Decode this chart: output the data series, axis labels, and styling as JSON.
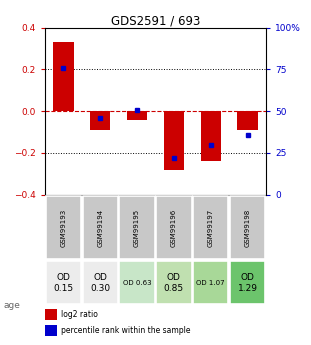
{
  "title": "GDS2591 / 693",
  "samples": [
    "GSM99193",
    "GSM99194",
    "GSM99195",
    "GSM99196",
    "GSM99197",
    "GSM99198"
  ],
  "log2_ratio": [
    0.33,
    -0.09,
    -0.04,
    -0.28,
    -0.24,
    -0.09
  ],
  "percentile_rank": [
    76,
    46,
    51,
    22,
    30,
    36
  ],
  "bar_color": "#cc0000",
  "blue_color": "#0000cc",
  "ylim": [
    -0.4,
    0.4
  ],
  "yticks_left": [
    -0.4,
    -0.2,
    0.0,
    0.2,
    0.4
  ],
  "yticks_right": [
    0,
    25,
    50,
    75,
    100
  ],
  "age_labels": [
    "OD\n0.15",
    "OD\n0.30",
    "OD 0.63",
    "OD\n0.85",
    "OD 1.07",
    "OD\n1.29"
  ],
  "age_bg_colors": [
    "#ececec",
    "#ececec",
    "#c8e6c8",
    "#c0e0b0",
    "#a8d898",
    "#6cc46c"
  ],
  "age_label_large": [
    true,
    true,
    false,
    true,
    false,
    true
  ],
  "sample_bg_color": "#c8c8c8",
  "legend_red_label": "log2 ratio",
  "legend_blue_label": "percentile rank within the sample"
}
